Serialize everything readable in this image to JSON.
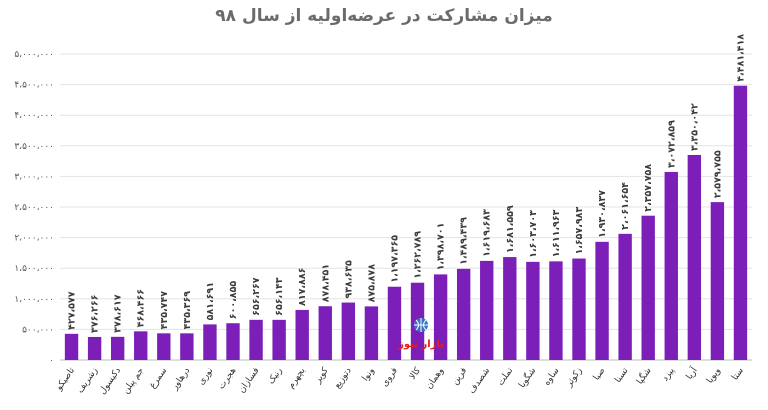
{
  "chart_data": {
    "type": "bar",
    "title": "میزان مشارکت در عرضه‌اولیه از سال ۹۸",
    "xlabel": "",
    "ylabel": "",
    "ylim": [
      0,
      5000000
    ],
    "yticks": [
      0,
      500000,
      1000000,
      1500000,
      2000000,
      2500000,
      3000000,
      3500000,
      4000000,
      4500000,
      5000000
    ],
    "ytick_labels": [
      "۰",
      "۵۰۰،۰۰۰",
      "۱،۰۰۰،۰۰۰",
      "۱،۵۰۰،۰۰۰",
      "۲،۰۰۰،۰۰۰",
      "۲،۵۰۰،۰۰۰",
      "۳،۰۰۰،۰۰۰",
      "۳،۵۰۰،۰۰۰",
      "۴،۰۰۰،۰۰۰",
      "۴،۵۰۰،۰۰۰",
      "۵،۰۰۰،۰۰۰"
    ],
    "grid": true,
    "bar_color": "#7b1fb8",
    "categories": [
      "تاصیکو",
      "زشریف",
      "دکیسول",
      "جم پیلن",
      "سمرغ",
      "درهاور",
      "نوری",
      "هجرت",
      "فسازان",
      "رنیک",
      "بچهرم",
      "کویر",
      "دتوزیع",
      "ونوا",
      "فروی",
      "کالا",
      "وهمان",
      "فرین",
      "شصدف",
      "تملت",
      "شگویا",
      "ساوه",
      "زکوثر",
      "صبا",
      "تسنا",
      "شگپا",
      "پیزد",
      "آریا",
      "وپویا",
      "ستا"
    ],
    "values": [
      427577,
      376266,
      378617,
      468466,
      435747,
      435369,
      581691,
      600855,
      656267,
      656143,
      817886,
      878451,
      938635,
      875878,
      1197365,
      1262789,
      1398701,
      1489439,
      1619683,
      1681559,
      1603703,
      1611963,
      1657983,
      1930837,
      2061654,
      2357758,
      3072859,
      3350042,
      2579755,
      4481418
    ],
    "value_labels": [
      "۴۲۷،۵۷۷",
      "۳۷۶،۲۶۶",
      "۳۷۸،۶۱۷",
      "۴۶۸،۴۶۶",
      "۴۳۵،۷۴۷",
      "۴۳۵،۳۶۹",
      "۵۸۱،۶۹۱",
      "۶۰۰،۸۵۵",
      "۶۵۶،۲۶۷",
      "۶۵۶،۱۴۳",
      "۸۱۷،۸۸۶",
      "۸۷۸،۴۵۱",
      "۹۳۸،۶۳۵",
      "۸۷۵،۸۷۸",
      "۱،۱۹۷،۳۶۵",
      "۱،۲۶۲،۷۸۹",
      "۱،۳۹۸،۷۰۱",
      "۱،۴۸۹،۴۳۹",
      "۱،۶۱۹،۶۸۳",
      "۱،۶۸۱،۵۵۹",
      "۱،۶۰۳،۷۰۳",
      "۱،۶۱۱،۹۶۳",
      "۱،۶۵۷،۹۸۳",
      "۱،۹۳۰،۸۳۷",
      "۲،۰۶۱،۶۵۴",
      "۲،۳۵۷،۷۵۸",
      "۳،۰۷۲،۸۵۹",
      "۳،۳۵۰،۰۴۲",
      "۲،۵۷۹،۷۵۵",
      "۴،۴۸۱،۴۱۸"
    ]
  },
  "watermark": {
    "text": "بازار نیوز",
    "accent_color": "#e02020",
    "icon": "globe-logo-icon"
  }
}
